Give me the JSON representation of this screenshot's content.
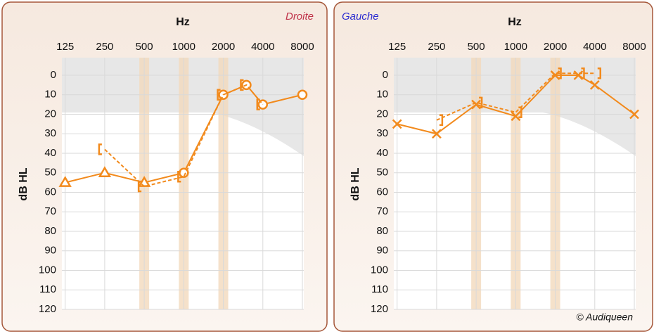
{
  "credit": "© Audiqueen",
  "chart_data": [
    {
      "type": "line",
      "title": "Droite",
      "title_color": "#c0334a",
      "title_corner": "top-right",
      "xlabel": "Hz",
      "ylabel": "dB HL",
      "x_log": true,
      "y_inverted": true,
      "grid": true,
      "x": [
        125,
        250,
        500,
        1000,
        2000,
        3000,
        4000,
        8000
      ],
      "xlim": [
        118,
        8200
      ],
      "xticks": [
        125,
        250,
        500,
        1000,
        2000,
        4000,
        8000
      ],
      "ylim": [
        -9,
        120
      ],
      "yticks": [
        0,
        10,
        20,
        30,
        40,
        50,
        60,
        70,
        80,
        90,
        100,
        110,
        120
      ],
      "series": [
        {
          "color": "#f28a1c",
          "dashed": false,
          "markers": [
            "triangle",
            "triangle",
            "triangle",
            "circle",
            "circle",
            "circle",
            "circle",
            "circle"
          ],
          "values": [
            55,
            50,
            55,
            50,
            10,
            5,
            15,
            10
          ]
        },
        {
          "color": "#f28a1c",
          "dashed": true,
          "markers": [
            null,
            "bracket-left",
            "bracket-left",
            "bracket-left",
            "bracket-left",
            "bracket-left",
            "bracket-left",
            null
          ],
          "values": [
            null,
            38,
            57,
            52,
            10,
            5,
            15,
            null
          ]
        }
      ]
    },
    {
      "type": "line",
      "title": "Gauche",
      "title_color": "#2b2bd0",
      "title_corner": "top-left",
      "xlabel": "Hz",
      "ylabel": "dB HL",
      "x_log": true,
      "y_inverted": true,
      "grid": true,
      "x": [
        125,
        250,
        500,
        1000,
        2000,
        3000,
        4000,
        8000
      ],
      "xlim": [
        118,
        8200
      ],
      "xticks": [
        125,
        250,
        500,
        1000,
        2000,
        4000,
        8000
      ],
      "ylim": [
        -9,
        120
      ],
      "yticks": [
        0,
        10,
        20,
        30,
        40,
        50,
        60,
        70,
        80,
        90,
        100,
        110,
        120
      ],
      "series": [
        {
          "color": "#f28a1c",
          "dashed": false,
          "markers": [
            "cross",
            "cross",
            "cross",
            "cross",
            "cross",
            "cross",
            "cross",
            "cross"
          ],
          "values": [
            25,
            30,
            15,
            21,
            0,
            0,
            5,
            20
          ]
        },
        {
          "color": "#f28a1c",
          "dashed": true,
          "markers": [
            null,
            "bracket-right",
            "bracket-right",
            "bracket-right",
            "bracket-right",
            "bracket-right",
            "bracket-right",
            null
          ],
          "values": [
            null,
            23,
            14,
            19,
            -1,
            -1,
            -1,
            null
          ]
        }
      ]
    }
  ]
}
